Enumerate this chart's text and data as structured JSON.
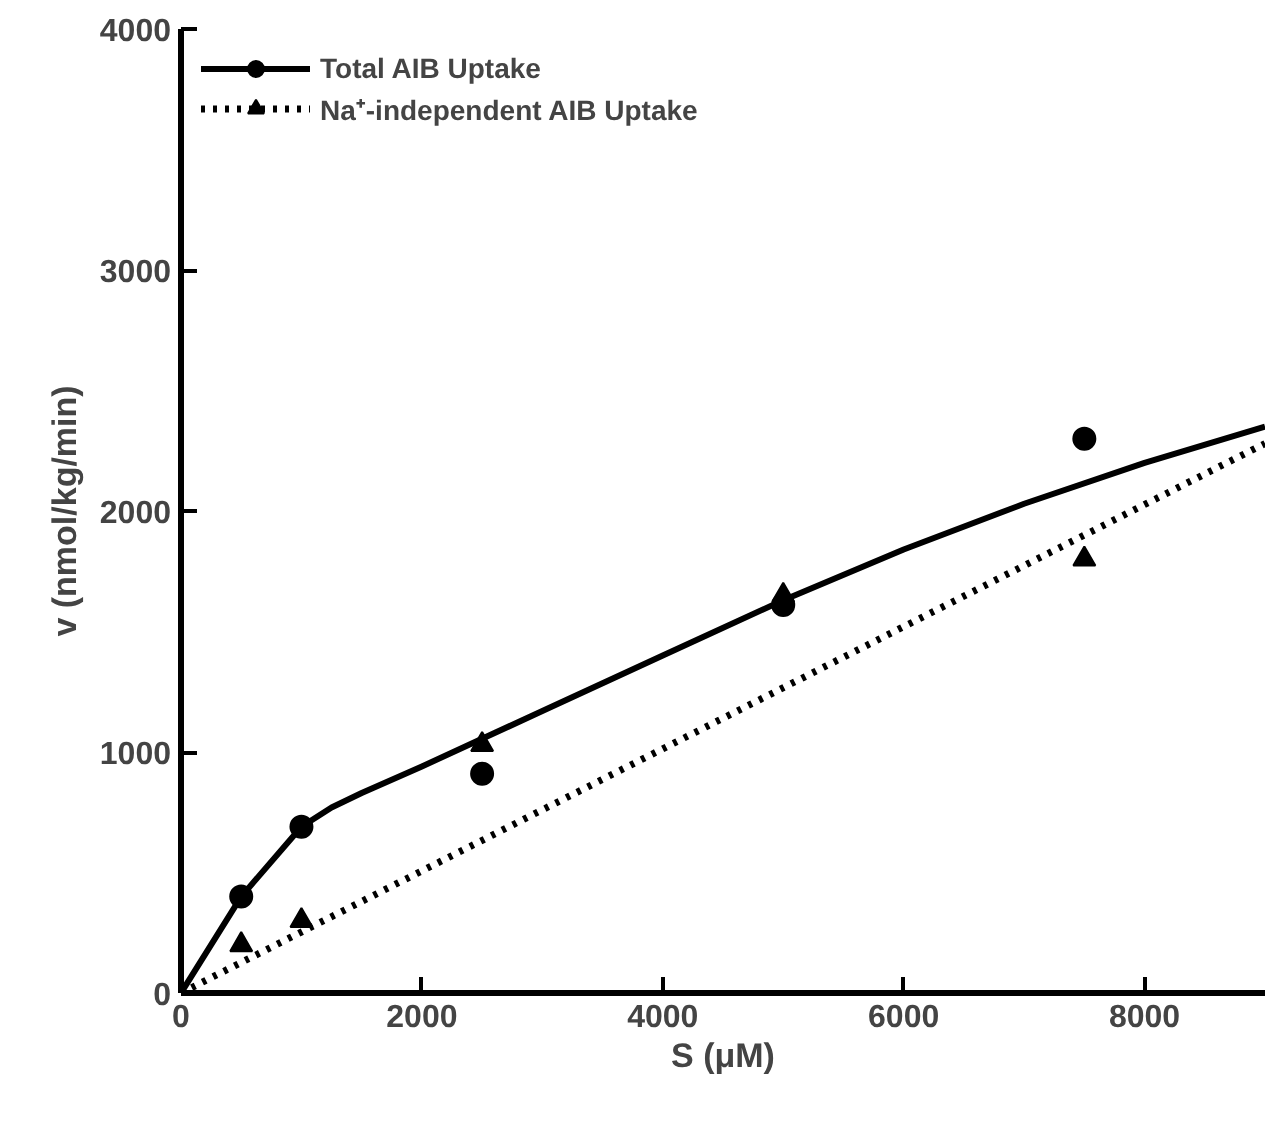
{
  "chart_data": {
    "type": "line",
    "xlabel": "S (μM)",
    "ylabel": "v (nmol/kg/min)",
    "xlim": [
      0,
      9000
    ],
    "ylim": [
      0,
      4000
    ],
    "xticks": [
      0,
      2000,
      4000,
      6000,
      8000
    ],
    "yticks": [
      0,
      1000,
      2000,
      3000,
      4000
    ],
    "grid": false,
    "legend": "top left",
    "series": [
      {
        "name": "Total AIB Uptake",
        "color": "#000000",
        "line_style": "solid",
        "x": [
          0,
          500,
          1000,
          1250,
          1500,
          2000,
          3000,
          4000,
          5000,
          6000,
          7000,
          8000,
          9000
        ],
        "values": [
          0,
          400,
          690,
          770,
          830,
          940,
          1170,
          1400,
          1630,
          1840,
          2030,
          2200,
          2350
        ]
      },
      {
        "type": "scatter",
        "color": "#000000",
        "marker": "circle",
        "x": [
          500,
          1000,
          2500,
          5000,
          7500
        ],
        "values": [
          400,
          690,
          910,
          1610,
          2300
        ]
      },
      {
        "name": "Na⁺-independent AIB Uptake",
        "color": "#000000",
        "line_style": "dotted",
        "x": [
          0,
          9000
        ],
        "values": [
          0,
          2280
        ]
      },
      {
        "type": "scatter",
        "color": "#000000",
        "marker": "triangle",
        "x": [
          500,
          1000,
          2500,
          5000,
          7500
        ],
        "values": [
          200,
          300,
          1030,
          1650,
          1800
        ]
      }
    ]
  }
}
